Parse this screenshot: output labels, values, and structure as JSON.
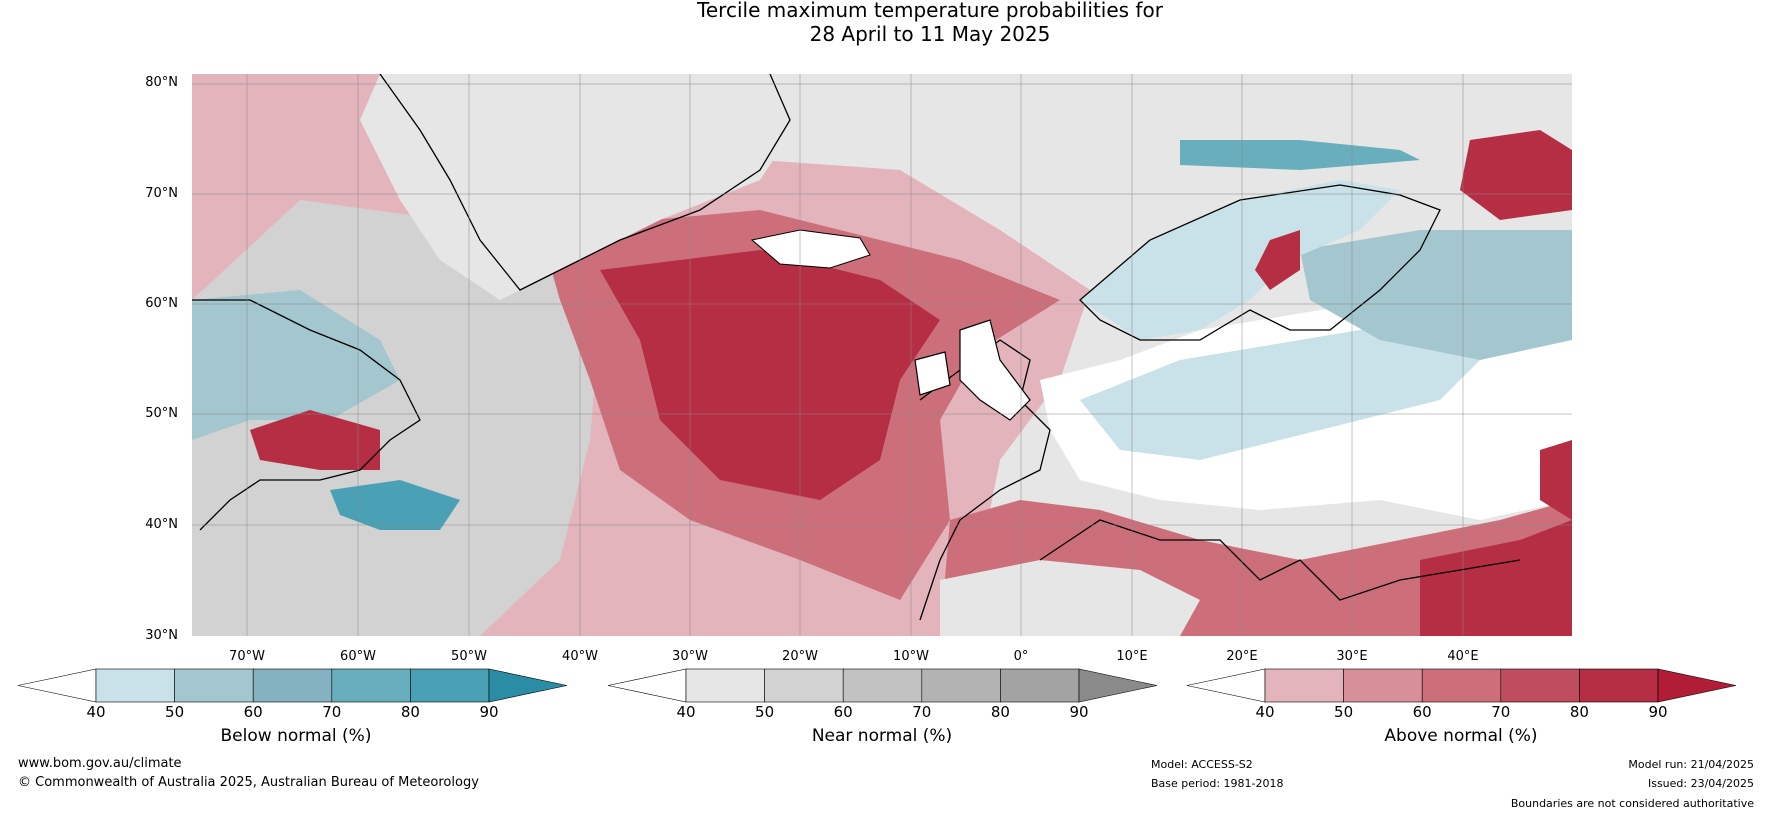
{
  "title": {
    "line1": "Tercile maximum temperature probabilities for",
    "line2": "28 April to 11 May 2025"
  },
  "map": {
    "lat_labels": [
      "80°N",
      "70°N",
      "60°N",
      "50°N",
      "40°N",
      "30°N"
    ],
    "lon_labels": [
      "70°W",
      "60°W",
      "50°W",
      "40°W",
      "30°W",
      "20°W",
      "10°W",
      "0°",
      "10°E",
      "20°E",
      "30°E",
      "40°E"
    ],
    "colors": {
      "ocean_warm": "#b61c3a",
      "land": "#ffffff",
      "coast": "#000000",
      "border": "#777777",
      "grid": "#888888"
    }
  },
  "colorbars": [
    {
      "label": "Below normal (%)",
      "ticks": [
        "40",
        "50",
        "60",
        "70",
        "80",
        "90"
      ],
      "colors": [
        "#ffffff",
        "#c9e1e8",
        "#a4c6cf",
        "#85b2c0",
        "#69aebd",
        "#4aa1b5",
        "#2a8ca5"
      ]
    },
    {
      "label": "Near normal (%)",
      "ticks": [
        "40",
        "50",
        "60",
        "70",
        "80",
        "90"
      ],
      "colors": [
        "#ffffff",
        "#e6e6e6",
        "#d2d2d2",
        "#c2c2c2",
        "#b3b3b3",
        "#a3a3a3",
        "#8a8a8a"
      ]
    },
    {
      "label": "Above normal (%)",
      "ticks": [
        "40",
        "50",
        "60",
        "70",
        "80",
        "90"
      ],
      "colors": [
        "#ffffff",
        "#e3b4bc",
        "#d79099",
        "#cc6f7b",
        "#bf4d5e",
        "#b52e44",
        "#b11c36"
      ]
    }
  ],
  "footer": {
    "website": "www.bom.gov.au/climate",
    "copyright": "© Commonwealth of Australia 2025, Australian Bureau of Meteorology",
    "model": "Model: ACCESS-S2",
    "base_period": "Base period: 1981-2018",
    "model_run": "Model run: 21/04/2025",
    "issued": "Issued: 23/04/2025",
    "disclaimer": "Boundaries are not considered authoritative"
  }
}
